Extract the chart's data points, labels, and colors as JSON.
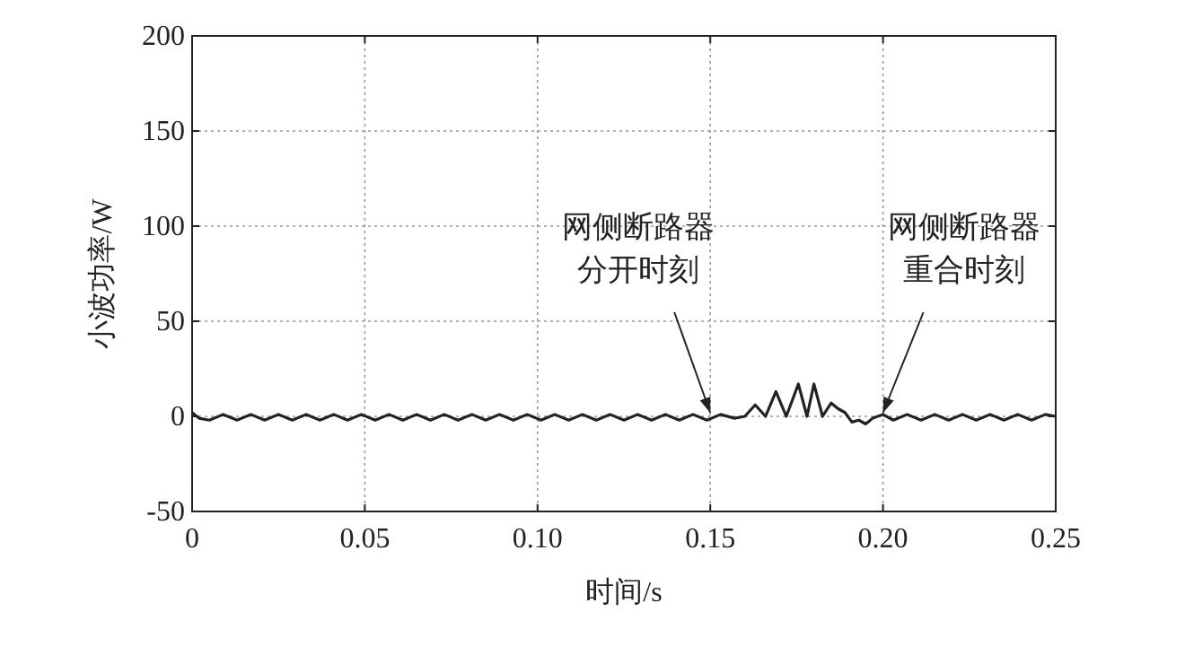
{
  "chart_data": {
    "type": "line",
    "xlabel": "时间/s",
    "ylabel": "小波功率/W",
    "xlim": [
      0,
      0.25
    ],
    "ylim": [
      -50,
      200
    ],
    "xticks": [
      {
        "value": 0,
        "label": "0"
      },
      {
        "value": 0.05,
        "label": "0.05"
      },
      {
        "value": 0.1,
        "label": "0.10"
      },
      {
        "value": 0.15,
        "label": "0.15"
      },
      {
        "value": 0.2,
        "label": "0.20"
      },
      {
        "value": 0.25,
        "label": "0.25"
      }
    ],
    "yticks": [
      -50,
      0,
      50,
      100,
      150,
      200
    ],
    "grid": true,
    "line_style": "solid",
    "annotations": [
      {
        "text": "网侧断路器分开时刻",
        "x": 0.15,
        "y": 0
      },
      {
        "text": "网侧断路器重合时刻",
        "x": 0.2,
        "y": 0
      }
    ],
    "series": [
      {
        "color": "#222222",
        "x": [
          0,
          0.002,
          0.005,
          0.009,
          0.013,
          0.017,
          0.021,
          0.025,
          0.029,
          0.033,
          0.037,
          0.041,
          0.045,
          0.049,
          0.053,
          0.057,
          0.061,
          0.065,
          0.069,
          0.073,
          0.077,
          0.081,
          0.085,
          0.089,
          0.093,
          0.097,
          0.101,
          0.105,
          0.109,
          0.113,
          0.117,
          0.121,
          0.125,
          0.129,
          0.133,
          0.137,
          0.141,
          0.145,
          0.149,
          0.153,
          0.157,
          0.16,
          0.163,
          0.166,
          0.169,
          0.172,
          0.1755,
          0.178,
          0.18,
          0.1825,
          0.185,
          0.187,
          0.189,
          0.191,
          0.193,
          0.195,
          0.197,
          0.2,
          0.203,
          0.207,
          0.211,
          0.215,
          0.219,
          0.223,
          0.227,
          0.231,
          0.235,
          0.239,
          0.243,
          0.247,
          0.25
        ],
        "values": [
          2,
          -1,
          -2,
          1,
          -2,
          1,
          -2,
          1,
          -2,
          1,
          -2,
          1,
          -2,
          1,
          -2,
          1,
          -2,
          1,
          -2,
          1,
          -2,
          1,
          -2,
          1,
          -2,
          1,
          -2,
          1,
          -2,
          1,
          -2,
          1,
          -2,
          1,
          -2,
          1,
          -2,
          1,
          -2,
          1,
          -1,
          0,
          6,
          0,
          13,
          0,
          17,
          0,
          17,
          0,
          7,
          4,
          2,
          -3,
          -2,
          -4,
          -1,
          1,
          -2,
          1,
          -2,
          1,
          -2,
          1,
          -2,
          1,
          -2,
          1,
          -2,
          1,
          0
        ]
      }
    ]
  }
}
